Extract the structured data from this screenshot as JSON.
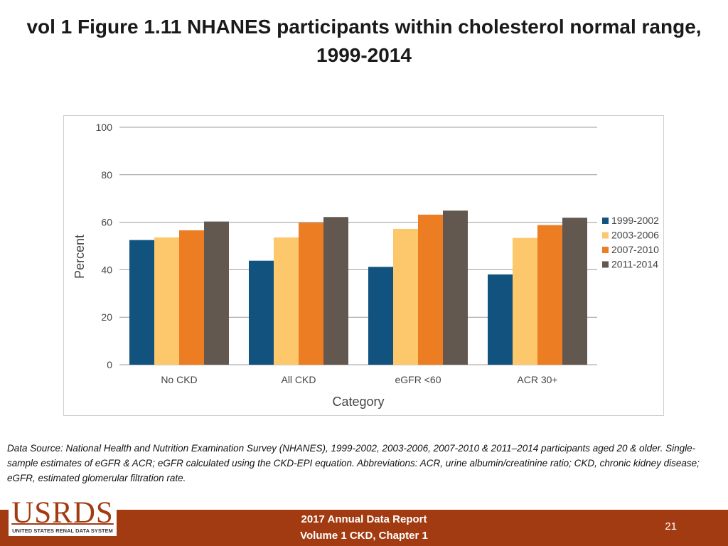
{
  "title": "vol 1 Figure 1.11 NHANES participants within cholesterol normal range, 1999-2014",
  "chart_data": {
    "type": "bar",
    "title": "",
    "xlabel": "Category",
    "ylabel": "Percent",
    "ylim": [
      0,
      100
    ],
    "yticks": [
      0,
      20,
      40,
      60,
      80,
      100
    ],
    "grid": true,
    "legend_position": "right",
    "categories": [
      "No CKD",
      "All CKD",
      "eGFR <60",
      "ACR 30+"
    ],
    "series": [
      {
        "name": "1999-2002",
        "color": "#12527f",
        "values": [
          52.5,
          43.8,
          41.2,
          38.0
        ]
      },
      {
        "name": "2003-2006",
        "color": "#fdc76c",
        "values": [
          53.6,
          53.6,
          57.2,
          53.4
        ]
      },
      {
        "name": "2007-2010",
        "color": "#ec7d22",
        "values": [
          56.6,
          59.8,
          63.2,
          58.8
        ]
      },
      {
        "name": "2011-2014",
        "color": "#625850",
        "values": [
          60.3,
          62.2,
          64.9,
          61.9
        ]
      }
    ]
  },
  "source_note": "Data Source: National Health and Nutrition Examination Survey (NHANES), 1999-2002, 2003-2006, 2007-2010 & 2011–2014 participants aged 20 & older. Single-sample estimates of eGFR & ACR; eGFR calculated using the CKD-EPI equation. Abbreviations: ACR, urine albumin/creatinine ratio; CKD, chronic kidney disease; eGFR, estimated glomerular filtration rate.",
  "footer": {
    "line1": "2017 Annual Data Report",
    "line2": "Volume 1 CKD, Chapter 1",
    "page_number": "21"
  },
  "logo": {
    "wordmark": "USRDS",
    "tagline": "UNITED STATES RENAL DATA SYSTEM"
  }
}
